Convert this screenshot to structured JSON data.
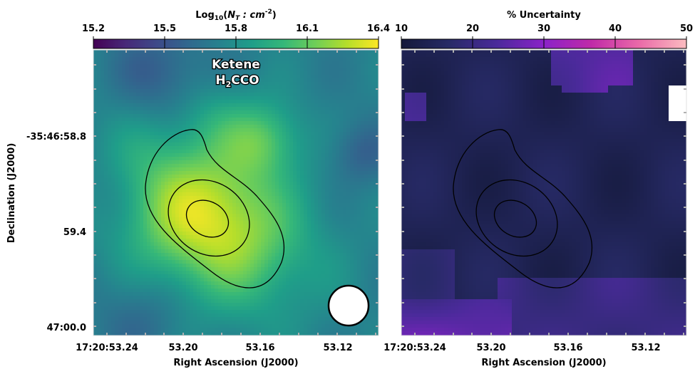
{
  "chart_data": [
    {
      "type": "heatmap",
      "panel": "left",
      "title": "Ketene",
      "molecule_formula": "H2CCO",
      "molecule_parts": [
        "H",
        "2",
        "CCO"
      ],
      "colormap": "viridis",
      "colorbar": {
        "label": "Log10(NT : cm^-2)",
        "label_parts": [
          "Log",
          "10",
          "(",
          "N",
          "T",
          " : cm",
          "-2",
          ")"
        ],
        "range": [
          15.2,
          16.4
        ],
        "ticks": [
          15.2,
          15.5,
          15.8,
          16.1,
          16.4
        ],
        "tick_labels": [
          "15.2",
          "15.5",
          "15.8",
          "16.1",
          "16.4"
        ]
      },
      "xlabel": "Right Ascension (J2000)",
      "ylabel": "Declination (J2000)",
      "x_tick_labels": [
        "17:20:53.24",
        "53.20",
        "53.16",
        "53.12"
      ],
      "y_tick_labels": [
        "-35:46:58.8",
        "59.4",
        "47:00.0"
      ],
      "beam": "circle, bottom-right",
      "peak_value": 16.35
    },
    {
      "type": "heatmap",
      "panel": "right",
      "title": "% Uncertainty",
      "colormap": "custom navy-purple-pink",
      "colorbar": {
        "label": "% Uncertainty",
        "range": [
          10,
          50
        ],
        "ticks": [
          10,
          20,
          30,
          40,
          50
        ],
        "tick_labels": [
          "10",
          "20",
          "30",
          "40",
          "50"
        ]
      },
      "xlabel": "Right Ascension (J2000)",
      "x_tick_labels": [
        "17:20:53.24",
        "53.20",
        "53.16",
        "53.12"
      ],
      "typical_value": 14
    }
  ],
  "colors": {
    "viridis_stops": [
      "#440154",
      "#482878",
      "#3e4989",
      "#31688e",
      "#26828e",
      "#1f9e89",
      "#35b779",
      "#6ece58",
      "#b5de2b",
      "#fde725"
    ],
    "uncertainty_stops": [
      "#14193a",
      "#272a66",
      "#4a2a9a",
      "#8a22c8",
      "#c02aa8",
      "#ea6aa8",
      "#fbbcc0"
    ],
    "contour": "#000000",
    "axis_tick": "#b0b0b0"
  }
}
